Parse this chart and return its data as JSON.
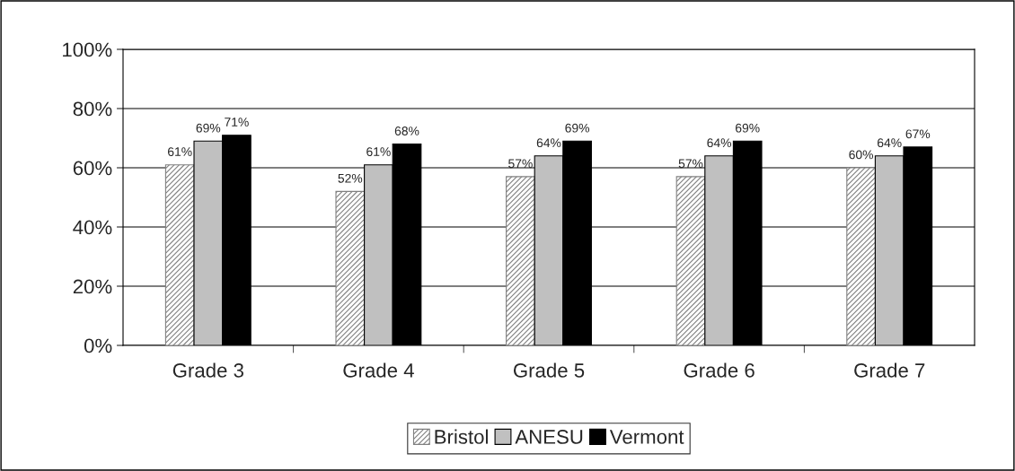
{
  "chart_data": {
    "type": "bar",
    "categories": [
      "Grade 3",
      "Grade 4",
      "Grade 5",
      "Grade 6",
      "Grade 7"
    ],
    "series": [
      {
        "name": "Bristol",
        "color": "#808080",
        "values": [
          61,
          52,
          57,
          57,
          60
        ],
        "value_labels": [
          "61%",
          "52%",
          "57%",
          "57%",
          "60%"
        ]
      },
      {
        "name": "ANESU",
        "color": "#c0c0c0",
        "values": [
          69,
          61,
          64,
          64,
          64
        ],
        "value_labels": [
          "69%",
          "61%",
          "64%",
          "64%",
          "64%"
        ]
      },
      {
        "name": "Vermont",
        "color": "#000000",
        "values": [
          71,
          68,
          69,
          69,
          67
        ],
        "value_labels": [
          "71%",
          "68%",
          "69%",
          "69%",
          "67%"
        ]
      }
    ],
    "ylim": [
      0,
      100
    ],
    "yticks": [
      {
        "value": 0,
        "label": "0%"
      },
      {
        "value": 20,
        "label": "20%"
      },
      {
        "value": 40,
        "label": "40%"
      },
      {
        "value": 60,
        "label": "60%"
      },
      {
        "value": 80,
        "label": "80%"
      },
      {
        "value": 100,
        "label": "100%"
      }
    ],
    "grid": "y",
    "legend": "bottom"
  }
}
